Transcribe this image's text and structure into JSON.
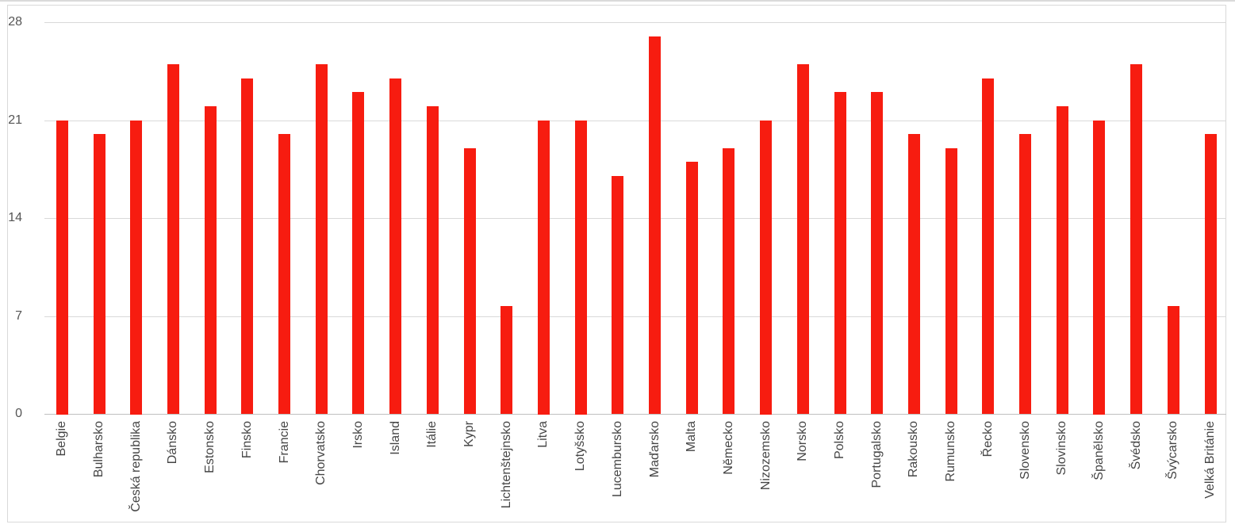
{
  "chart_data": {
    "type": "bar",
    "title": "",
    "xlabel": "",
    "ylabel": "",
    "categories": [
      "Belgie",
      "Bulharsko",
      "Česká republika",
      "Dánsko",
      "Estonsko",
      "Finsko",
      "Francie",
      "Chorvatsko",
      "Irsko",
      "Island",
      "Itálie",
      "Kypr",
      "Lichtenštejnsko",
      "Litva",
      "Lotyšsko",
      "Lucembursko",
      "Maďarsko",
      "Malta",
      "Německo",
      "Nizozemsko",
      "Norsko",
      "Polsko",
      "Portugalsko",
      "Rakousko",
      "Rumunsko",
      "Řecko",
      "Slovensko",
      "Slovinsko",
      "Španělsko",
      "Švédsko",
      "Švýcarsko",
      "Velká Británie"
    ],
    "values": [
      21,
      20,
      21,
      25,
      22,
      24,
      20,
      25,
      23,
      24,
      22,
      19,
      7.7,
      21,
      21,
      17,
      27,
      18,
      19,
      21,
      25,
      23,
      23,
      20,
      19,
      24,
      20,
      22,
      21,
      25,
      7.7,
      20
    ],
    "ylim": [
      0,
      28
    ],
    "yticks": [
      0,
      7,
      14,
      21,
      28
    ],
    "grid": "horizontal",
    "legend_position": "none",
    "bar_color": "#f71c10",
    "gridline_color": "#d9d9d9",
    "axis_line_color": "#c0c0c0",
    "tick_label_color": "#555555",
    "category_label_color": "#454545",
    "background_color": "#ffffff",
    "border_color": "#d9d9d9"
  }
}
